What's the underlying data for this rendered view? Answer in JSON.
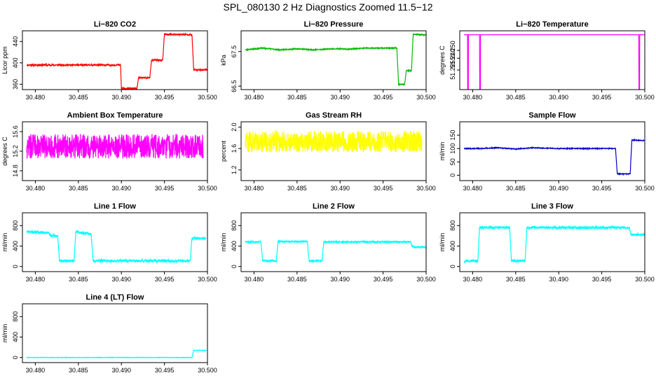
{
  "title": "SPL_080130  2 Hz Diagnostics Zoomed 11.5−12",
  "chart_data": [
    {
      "type": "line",
      "title": "Li−820 CO2",
      "ylabel": "Licor ppm",
      "color": "#ff0000",
      "xlim": [
        30.4785,
        30.5
      ],
      "ylim": [
        350,
        460
      ],
      "xticks": [
        "30.480",
        "30.485",
        "30.490",
        "30.495",
        "30.500"
      ],
      "xtick_values": [
        30.48,
        30.485,
        30.49,
        30.495,
        30.5
      ],
      "yticks": [
        "360",
        "400",
        "440"
      ],
      "ytick_values": [
        360,
        400,
        440
      ],
      "noise": 1.5,
      "noise_seed": 11,
      "series": [
        {
          "x": [
            30.479,
            30.4899,
            30.49,
            30.4918,
            30.492,
            30.4933,
            30.4935,
            30.4948,
            30.495,
            30.4982,
            30.4984,
            30.5
          ],
          "y": [
            396,
            396,
            352,
            352,
            372,
            372,
            405,
            405,
            453,
            453,
            387,
            387
          ]
        }
      ]
    },
    {
      "type": "line",
      "title": "Li−820 Pressure",
      "ylabel": "kPa",
      "color": "#00bb00",
      "xlim": [
        30.4785,
        30.5
      ],
      "ylim": [
        66.4,
        68.1
      ],
      "xticks": [
        "30.480",
        "30.485",
        "30.490",
        "30.495",
        "30.500"
      ],
      "xtick_values": [
        30.48,
        30.485,
        30.49,
        30.495,
        30.5
      ],
      "yticks": [
        "66.5",
        "67.5"
      ],
      "ytick_values": [
        66.5,
        67.5
      ],
      "noise": 0.015,
      "noise_seed": 23,
      "series": [
        {
          "x": [
            30.479,
            30.481,
            30.483,
            30.485,
            30.487,
            30.489,
            30.491,
            30.493,
            30.4966,
            30.4968,
            30.4975,
            30.4977,
            30.4983,
            30.4985,
            30.5
          ],
          "y": [
            67.55,
            67.6,
            67.55,
            67.58,
            67.55,
            67.58,
            67.57,
            67.6,
            67.6,
            66.55,
            66.55,
            66.95,
            66.95,
            68.0,
            67.98
          ]
        }
      ]
    },
    {
      "type": "line",
      "title": "Li−820 Temperature",
      "ylabel": "degrees C",
      "color": "#ff00ff",
      "xlim": [
        30.4785,
        30.5
      ],
      "ylim": [
        51.2,
        51.275
      ],
      "xticks": [
        "30.480",
        "30.485",
        "30.490",
        "30.495",
        "30.500"
      ],
      "xtick_values": [
        30.48,
        30.485,
        30.49,
        30.495,
        30.5
      ],
      "yticks": [
        "51.225",
        "51.240",
        "51.250"
      ],
      "ytick_values": [
        51.225,
        51.24,
        51.25
      ],
      "noise": 0,
      "noise_seed": 31,
      "series": [
        {
          "x": [
            30.479,
            30.4794,
            30.4794,
            30.4795,
            30.4795,
            30.4808,
            30.4808,
            30.4809,
            30.4809,
            30.4993,
            30.4993,
            30.4994,
            30.4994,
            30.5
          ],
          "y": [
            51.27,
            51.27,
            51.2,
            51.2,
            51.27,
            51.27,
            51.2,
            51.2,
            51.27,
            51.27,
            51.2,
            51.2,
            51.27,
            51.27
          ]
        }
      ]
    },
    {
      "type": "line",
      "title": "Ambient Box Temperature",
      "ylabel": "degrees C",
      "color": "#ff00ff",
      "xlim": [
        30.4785,
        30.5
      ],
      "ylim": [
        14.6,
        15.8
      ],
      "xticks": [
        "30.480",
        "30.485",
        "30.490",
        "30.495",
        "30.500"
      ],
      "xtick_values": [
        30.48,
        30.485,
        30.49,
        30.495,
        30.5
      ],
      "yticks": [
        "14.8",
        "15.2",
        "15.6"
      ],
      "ytick_values": [
        14.8,
        15.2,
        15.6
      ],
      "noise": 0.25,
      "noise_seed": 47,
      "series": [
        {
          "x": [
            30.479,
            30.4995
          ],
          "y": [
            15.3,
            15.3
          ]
        }
      ]
    },
    {
      "type": "line",
      "title": "Gas Stream RH",
      "ylabel": "percent",
      "color": "#ffff00",
      "xlim": [
        30.4785,
        30.5
      ],
      "ylim": [
        1.0,
        2.1
      ],
      "xticks": [
        "30.480",
        "30.485",
        "30.490",
        "30.495",
        "30.500"
      ],
      "xtick_values": [
        30.48,
        30.485,
        30.49,
        30.495,
        30.5
      ],
      "yticks": [
        "1.2",
        "1.6",
        "2.0"
      ],
      "ytick_values": [
        1.2,
        1.6,
        2.0
      ],
      "noise": 0.2,
      "noise_seed": 59,
      "series": [
        {
          "x": [
            30.479,
            30.4995
          ],
          "y": [
            1.73,
            1.73
          ]
        }
      ]
    },
    {
      "type": "line",
      "title": "Sample Flow",
      "ylabel": "ml/min",
      "color": "#0000cc",
      "xlim": [
        30.4785,
        30.5
      ],
      "ylim": [
        -20,
        200
      ],
      "xticks": [
        "30.480",
        "30.485",
        "30.490",
        "30.495",
        "30.500"
      ],
      "xtick_values": [
        30.48,
        30.485,
        30.49,
        30.495,
        30.5
      ],
      "yticks": [
        "0",
        "50",
        "100",
        "150"
      ],
      "ytick_values": [
        0,
        50,
        100,
        150
      ],
      "noise": 1.5,
      "noise_seed": 67,
      "series": [
        {
          "x": [
            30.479,
            30.481,
            30.483,
            30.485,
            30.487,
            30.49,
            30.4966,
            30.4968,
            30.4983,
            30.4985,
            30.5
          ],
          "y": [
            100,
            100,
            103,
            98,
            103,
            100,
            100,
            5,
            5,
            132,
            130
          ]
        }
      ]
    },
    {
      "type": "line",
      "title": "Line 1 Flow",
      "ylabel": "ml/min",
      "color": "#00ffff",
      "xlim": [
        30.4785,
        30.5
      ],
      "ylim": [
        -100,
        1050
      ],
      "xticks": [
        "30.480",
        "30.485",
        "30.490",
        "30.495",
        "30.500"
      ],
      "xtick_values": [
        30.48,
        30.485,
        30.49,
        30.495,
        30.5
      ],
      "yticks": [
        "0",
        "400",
        "800"
      ],
      "ytick_values": [
        0,
        400,
        800
      ],
      "noise": 28,
      "noise_seed": 71,
      "series": [
        {
          "x": [
            30.479,
            30.4815,
            30.4818,
            30.4826,
            30.4828,
            30.4845,
            30.4847,
            30.4865,
            30.4867,
            30.498,
            30.4982,
            30.4998
          ],
          "y": [
            680,
            660,
            600,
            600,
            110,
            110,
            680,
            630,
            110,
            110,
            550,
            550
          ]
        }
      ]
    },
    {
      "type": "line",
      "title": "Line 2 Flow",
      "ylabel": "ml/min",
      "color": "#00ffff",
      "xlim": [
        30.4785,
        30.5
      ],
      "ylim": [
        -100,
        1050
      ],
      "xticks": [
        "30.480",
        "30.485",
        "30.490",
        "30.495",
        "30.500"
      ],
      "xtick_values": [
        30.48,
        30.485,
        30.49,
        30.495,
        30.5
      ],
      "yticks": [
        "0",
        "400",
        "800"
      ],
      "ytick_values": [
        0,
        400,
        800
      ],
      "noise": 18,
      "noise_seed": 83,
      "series": [
        {
          "x": [
            30.479,
            30.4808,
            30.481,
            30.4826,
            30.4828,
            30.4862,
            30.4864,
            30.4879,
            30.4881,
            30.4982,
            30.4984,
            30.5
          ],
          "y": [
            480,
            480,
            110,
            110,
            490,
            490,
            110,
            110,
            480,
            480,
            380,
            380
          ]
        }
      ]
    },
    {
      "type": "line",
      "title": "Line 3 Flow",
      "ylabel": "ml/min",
      "color": "#00ffff",
      "xlim": [
        30.4785,
        30.5
      ],
      "ylim": [
        -100,
        1050
      ],
      "xticks": [
        "30.480",
        "30.485",
        "30.490",
        "30.495",
        "30.500"
      ],
      "xtick_values": [
        30.48,
        30.485,
        30.49,
        30.495,
        30.5
      ],
      "yticks": [
        "0",
        "400",
        "800"
      ],
      "ytick_values": [
        0,
        400,
        800
      ],
      "noise": 25,
      "noise_seed": 97,
      "series": [
        {
          "x": [
            30.479,
            30.4806,
            30.4808,
            30.4843,
            30.4845,
            30.4861,
            30.4863,
            30.4982,
            30.4984,
            30.5
          ],
          "y": [
            110,
            110,
            760,
            760,
            110,
            110,
            760,
            760,
            620,
            620
          ]
        }
      ]
    },
    {
      "type": "line",
      "title": "Line 4 (LT) Flow",
      "ylabel": "ml/min",
      "color": "#00ffff",
      "xlim": [
        30.4785,
        30.5
      ],
      "ylim": [
        -100,
        1050
      ],
      "xticks": [
        "30.480",
        "30.485",
        "30.490",
        "30.495",
        "30.500"
      ],
      "xtick_values": [
        30.48,
        30.485,
        30.49,
        30.495,
        30.5
      ],
      "yticks": [
        "0",
        "400",
        "800"
      ],
      "ytick_values": [
        0,
        400,
        800
      ],
      "noise": 4,
      "noise_seed": 101,
      "series": [
        {
          "x": [
            30.479,
            30.4982,
            30.4984,
            30.4999
          ],
          "y": [
            0,
            0,
            140,
            140
          ]
        }
      ]
    }
  ]
}
